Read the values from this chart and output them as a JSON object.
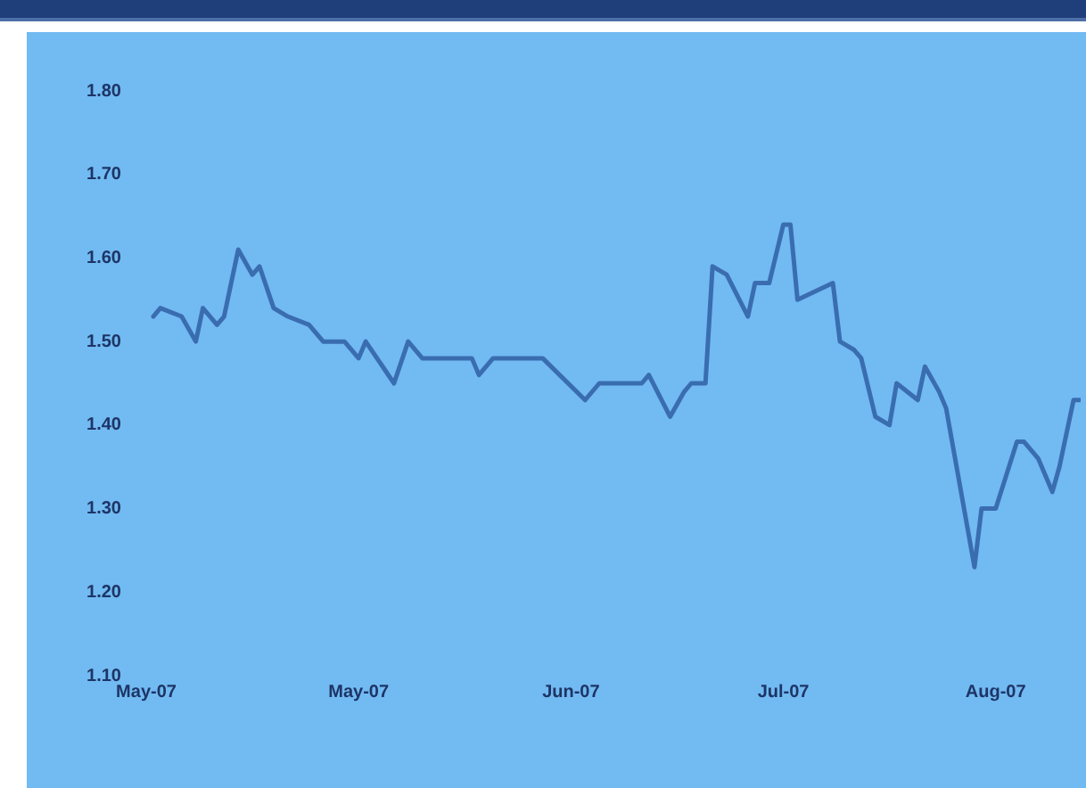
{
  "chart_data": {
    "type": "line",
    "line_style": "solid",
    "marker": "none",
    "grid": false,
    "legend": false,
    "x": [
      "2007-05-02",
      "2007-05-03",
      "2007-05-06",
      "2007-05-08",
      "2007-05-09",
      "2007-05-11",
      "2007-05-12",
      "2007-05-14",
      "2007-05-16",
      "2007-05-17",
      "2007-05-19",
      "2007-05-21",
      "2007-05-24",
      "2007-05-26",
      "2007-05-29",
      "2007-05-31",
      "2007-06-01",
      "2007-06-05",
      "2007-06-07",
      "2007-06-09",
      "2007-06-16",
      "2007-06-17",
      "2007-06-19",
      "2007-06-26",
      "2007-07-02",
      "2007-07-04",
      "2007-07-05",
      "2007-07-07",
      "2007-07-08",
      "2007-07-10",
      "2007-07-11",
      "2007-07-14",
      "2007-07-16",
      "2007-07-17",
      "2007-07-19",
      "2007-07-20",
      "2007-07-22",
      "2007-07-25",
      "2007-07-26",
      "2007-07-28",
      "2007-07-30",
      "2007-07-31",
      "2007-08-01",
      "2007-08-06",
      "2007-08-07",
      "2007-08-09",
      "2007-08-10",
      "2007-08-12",
      "2007-08-14",
      "2007-08-15",
      "2007-08-18",
      "2007-08-19",
      "2007-08-21",
      "2007-08-22",
      "2007-08-26",
      "2007-08-27",
      "2007-08-29",
      "2007-09-01",
      "2007-09-02",
      "2007-09-04",
      "2007-09-06",
      "2007-09-07",
      "2007-09-09",
      "2007-09-10"
    ],
    "series": [
      {
        "color": "#3a6db0",
        "values": [
          1.53,
          1.54,
          1.53,
          1.5,
          1.54,
          1.52,
          1.53,
          1.61,
          1.58,
          1.59,
          1.54,
          1.53,
          1.52,
          1.5,
          1.5,
          1.48,
          1.5,
          1.45,
          1.5,
          1.48,
          1.48,
          1.46,
          1.48,
          1.48,
          1.43,
          1.45,
          1.45,
          1.45,
          1.45,
          1.45,
          1.46,
          1.41,
          1.44,
          1.45,
          1.45,
          1.59,
          1.58,
          1.53,
          1.57,
          1.57,
          1.64,
          1.64,
          1.55,
          1.57,
          1.5,
          1.49,
          1.48,
          1.41,
          1.4,
          1.45,
          1.43,
          1.47,
          1.44,
          1.42,
          1.23,
          1.3,
          1.3,
          1.38,
          1.38,
          1.36,
          1.32,
          1.35,
          1.43,
          1.43
        ]
      }
    ],
    "xlim": [
      "2007-05-01",
      "2007-09-10"
    ],
    "xticks": [
      {
        "value": "2007-05-01",
        "label": "May-07"
      },
      {
        "value": "2007-05-31",
        "label": "May-07"
      },
      {
        "value": "2007-06-30",
        "label": "Jun-07"
      },
      {
        "value": "2007-07-30",
        "label": "Jul-07"
      },
      {
        "value": "2007-08-29",
        "label": "Aug-07"
      }
    ],
    "ylim": [
      1.1,
      1.8
    ],
    "yticks": [
      {
        "value": 1.1,
        "label": "1.10"
      },
      {
        "value": 1.2,
        "label": "1.20"
      },
      {
        "value": 1.3,
        "label": "1.30"
      },
      {
        "value": 1.4,
        "label": "1.40"
      },
      {
        "value": 1.5,
        "label": "1.50"
      },
      {
        "value": 1.6,
        "label": "1.60"
      },
      {
        "value": 1.7,
        "label": "1.70"
      },
      {
        "value": 1.8,
        "label": "1.80"
      }
    ]
  }
}
